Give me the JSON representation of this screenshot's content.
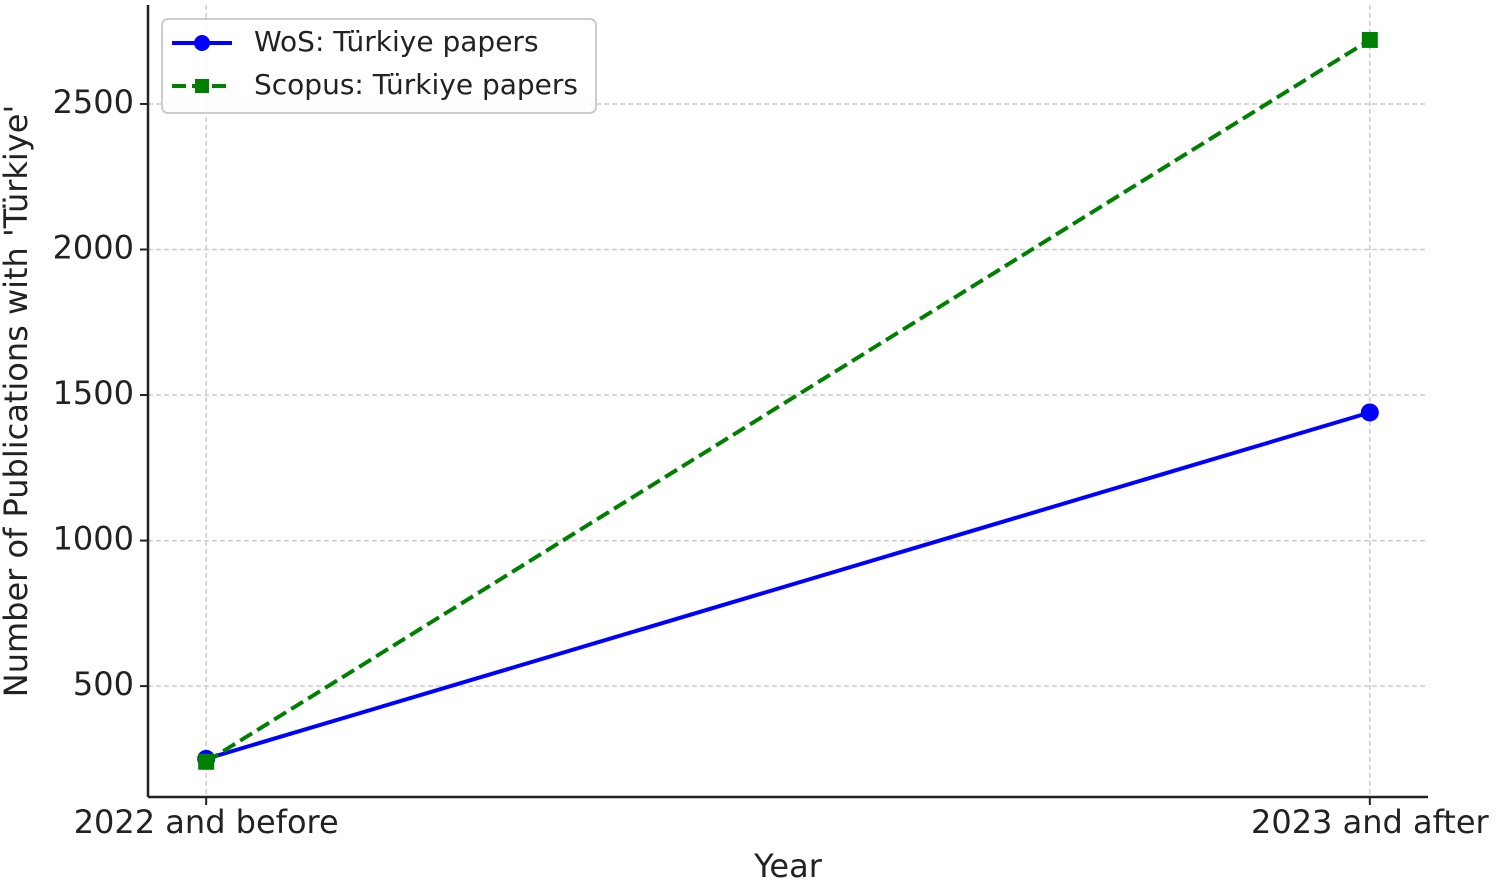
{
  "chart_data": {
    "type": "line",
    "x_label": "Year",
    "y_label": "Number of Publications with 'Türkiye'",
    "categories": [
      "2022 and before",
      "2023 and after"
    ],
    "series": [
      {
        "name": "WoS: Türkiye papers",
        "color": "#0000ff",
        "marker": "circle",
        "linestyle": "solid",
        "values": [
          250,
          1440
        ]
      },
      {
        "name": "Scopus: Türkiye papers",
        "color": "#008000",
        "marker": "square",
        "linestyle": "dashed",
        "values": [
          240,
          2720
        ]
      }
    ],
    "ylim": [
      119,
      2840
    ],
    "yticks": [
      500,
      1000,
      1500,
      2000,
      2500
    ],
    "grid": true,
    "legend": "upper left"
  }
}
